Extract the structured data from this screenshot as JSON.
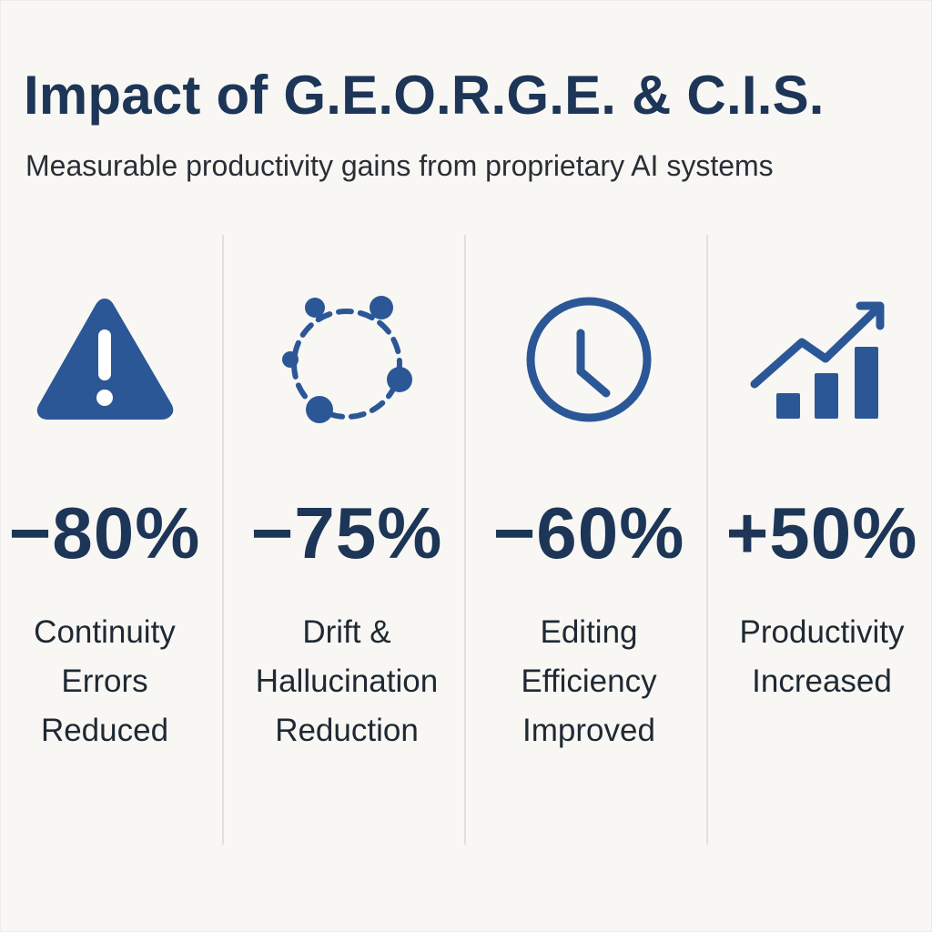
{
  "header": {
    "title": "Impact of G.E.O.R.G.E. & C.I.S.",
    "subtitle": "Measurable productivity gains from proprietary AI systems"
  },
  "colors": {
    "accent": "#2b5797",
    "heading": "#1d3557",
    "background": "#f8f7f4"
  },
  "metrics": [
    {
      "icon": "warning-icon",
      "value": "−80%",
      "label_lines": [
        "Continuity",
        "Errors",
        "Reduced"
      ]
    },
    {
      "icon": "cycle-dots-icon",
      "value": "−75%",
      "label_lines": [
        "Drift &",
        "Hallucination",
        "Reduction"
      ]
    },
    {
      "icon": "clock-icon",
      "value": "−60%",
      "label_lines": [
        "Editing",
        "Efficiency",
        "Improved"
      ]
    },
    {
      "icon": "growth-chart-icon",
      "value": "+50%",
      "label_lines": [
        "Productivity",
        "Increased"
      ]
    }
  ]
}
